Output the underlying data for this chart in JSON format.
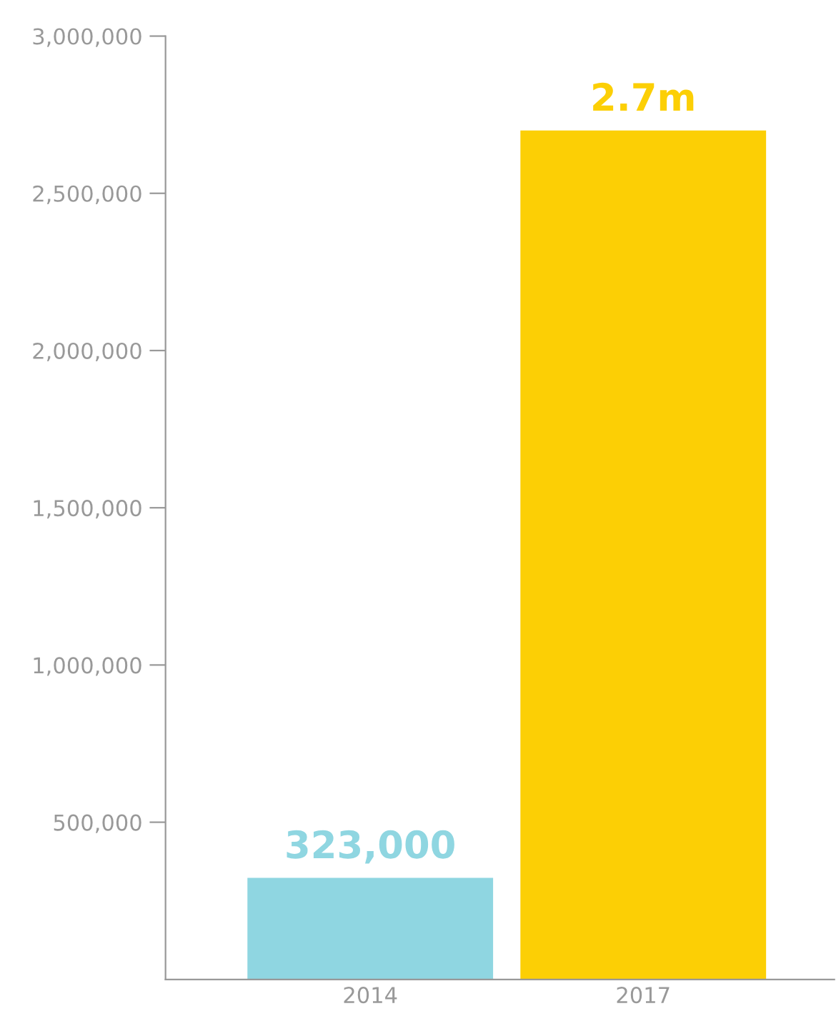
{
  "chart_data": {
    "type": "bar",
    "categories": [
      "2014",
      "2017"
    ],
    "values": [
      323000,
      2700000
    ],
    "colors": [
      "#8fd6e1",
      "#fccf05"
    ],
    "value_labels": [
      "323,000",
      "2.7m"
    ],
    "ylim": [
      0,
      3000000
    ],
    "yticks": [
      {
        "value": 500000,
        "label": "500,000"
      },
      {
        "value": 1000000,
        "label": "1,000,000"
      },
      {
        "value": 1500000,
        "label": "1,500,000"
      },
      {
        "value": 2000000,
        "label": "2,000,000"
      },
      {
        "value": 2500000,
        "label": "2,500,000"
      },
      {
        "value": 3000000,
        "label": "3,000,000"
      }
    ],
    "grid": false
  }
}
